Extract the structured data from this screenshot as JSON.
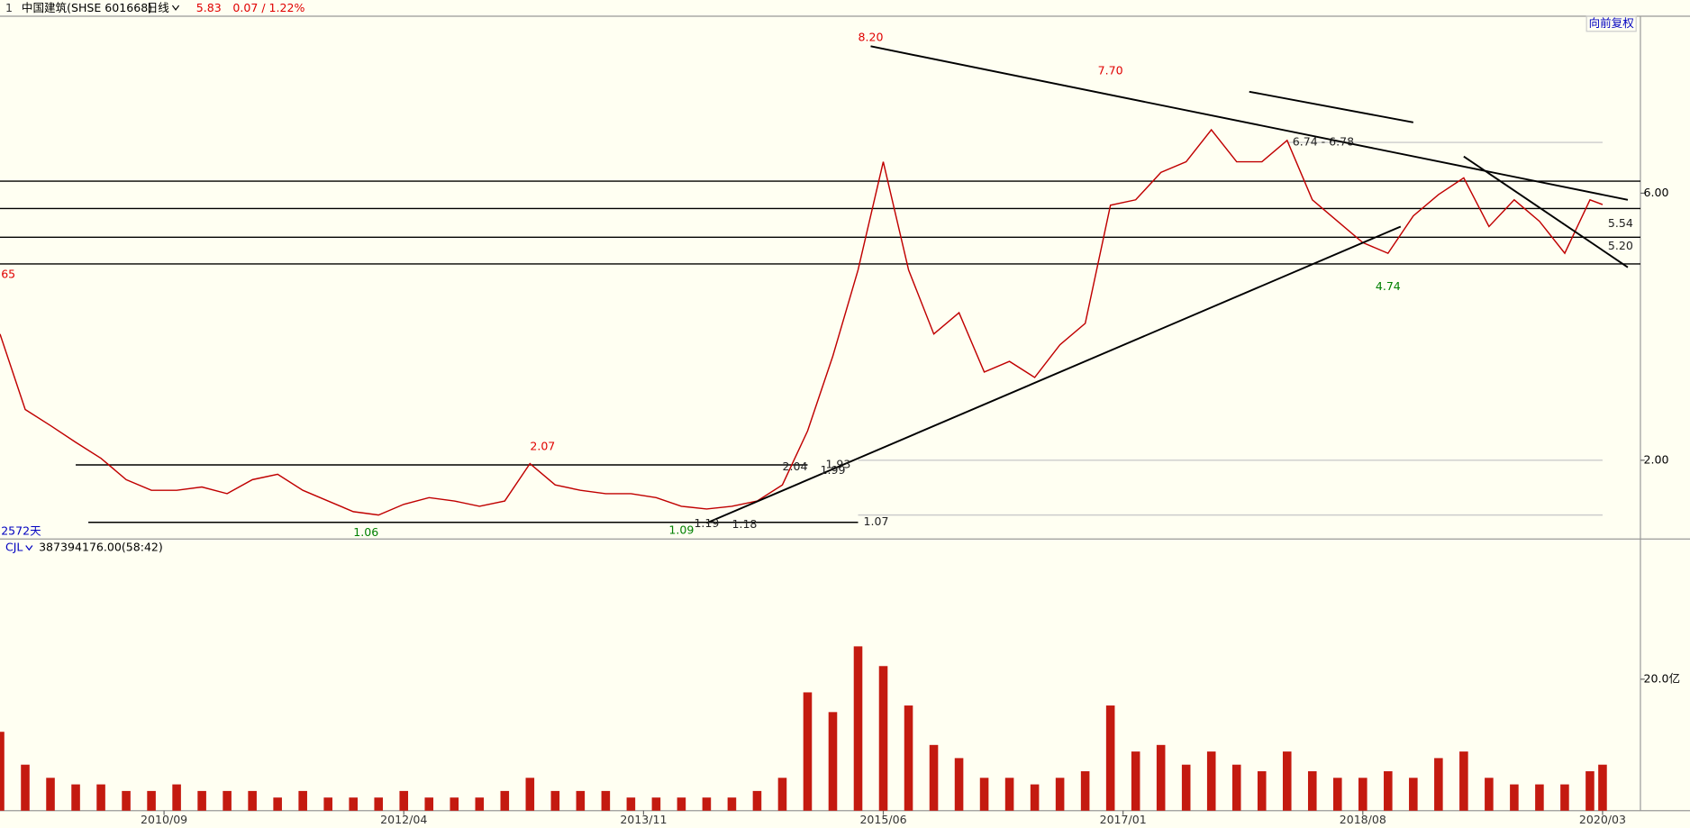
{
  "header": {
    "index": "1",
    "name": "中国建筑(SHSE 601668)",
    "period": "日线",
    "price": "5.83",
    "change": "0.07 / 1.22%",
    "adjust": "向前复权",
    "days": "2572天",
    "left_label": "65",
    "indicator": "CJL",
    "indicator_value": "387394176.00(58:42)"
  },
  "chart_data": [
    {
      "type": "line",
      "color": "#c00000",
      "xlim": [
        "2009/08",
        "2020/06"
      ],
      "ylim": [
        0.82,
        8.65
      ],
      "yticks": [
        {
          "value": 2,
          "label": "2.00"
        },
        {
          "value": 6,
          "label": "6.00"
        }
      ],
      "x": [
        "2009/08",
        "2009/10",
        "2009/12",
        "2010/02",
        "2010/04",
        "2010/06",
        "2010/08",
        "2010/10",
        "2010/12",
        "2011/02",
        "2011/04",
        "2011/06",
        "2011/08",
        "2011/10",
        "2011/12",
        "2012/02",
        "2012/04",
        "2012/06",
        "2012/08",
        "2012/10",
        "2012/12",
        "2013/02",
        "2013/04",
        "2013/06",
        "2013/08",
        "2013/10",
        "2013/12",
        "2014/02",
        "2014/04",
        "2014/06",
        "2014/08",
        "2014/10",
        "2014/12",
        "2015/02",
        "2015/04",
        "2015/06",
        "2015/08",
        "2015/10",
        "2015/12",
        "2016/02",
        "2016/04",
        "2016/06",
        "2016/08",
        "2016/10",
        "2016/12",
        "2017/02",
        "2017/04",
        "2017/06",
        "2017/08",
        "2017/10",
        "2017/12",
        "2018/02",
        "2018/04",
        "2018/06",
        "2018/08",
        "2018/10",
        "2018/12",
        "2019/02",
        "2019/04",
        "2019/06",
        "2019/08",
        "2019/10",
        "2019/12",
        "2020/02",
        "2020/03"
      ],
      "values": [
        3.89,
        2.76,
        2.52,
        2.27,
        2.03,
        1.71,
        1.55,
        1.55,
        1.6,
        1.5,
        1.71,
        1.79,
        1.55,
        1.39,
        1.23,
        1.18,
        1.34,
        1.44,
        1.39,
        1.31,
        1.39,
        1.95,
        1.63,
        1.55,
        1.5,
        1.5,
        1.44,
        1.31,
        1.27,
        1.31,
        1.39,
        1.63,
        2.44,
        3.56,
        4.85,
        6.47,
        4.85,
        3.89,
        4.21,
        3.32,
        3.48,
        3.24,
        3.73,
        4.05,
        5.82,
        5.9,
        6.31,
        6.47,
        6.95,
        6.47,
        6.47,
        6.79,
        5.9,
        5.58,
        5.26,
        5.1,
        5.66,
        5.98,
        6.23,
        5.5,
        5.9,
        5.58,
        5.1,
        5.9,
        5.83
      ],
      "hlines": [
        {
          "value": 6.18,
          "x": [
            "2009/08",
            "2020/06"
          ],
          "color": "#000000"
        },
        {
          "value": 5.77,
          "x": [
            "2009/08",
            "2020/06"
          ],
          "color": "#000000"
        },
        {
          "value": 5.34,
          "x": [
            "2009/08",
            "2020/06"
          ],
          "color": "#000000"
        },
        {
          "value": 4.94,
          "x": [
            "2009/08",
            "2020/06"
          ],
          "color": "#000000"
        },
        {
          "value": 1.93,
          "x": [
            "2010/02",
            "2014/12"
          ],
          "color": "#000000"
        },
        {
          "value": 1.07,
          "x": [
            "2010/03",
            "2015/04"
          ],
          "color": "#000000"
        },
        {
          "value": 6.76,
          "x": [
            "2018/02",
            "2020/03"
          ],
          "color": "#cccccc"
        },
        {
          "value": 2,
          "x": [
            "2015/04",
            "2020/03"
          ],
          "color": "#cccccc"
        },
        {
          "value": 1.18,
          "x": [
            "2015/04",
            "2020/03"
          ],
          "color": "#cccccc"
        }
      ],
      "trendlines": [
        {
          "x": [
            "2015/05",
            "2020/05"
          ],
          "y": [
            8.2,
            5.9
          ]
        },
        {
          "x": [
            "2017/11",
            "2018/12"
          ],
          "y": [
            7.52,
            7.06
          ]
        },
        {
          "x": [
            "2014/04",
            "2018/11"
          ],
          "y": [
            1.06,
            5.5
          ]
        },
        {
          "x": [
            "2019/04",
            "2020/05"
          ],
          "y": [
            6.55,
            4.89
          ]
        }
      ],
      "annotations": [
        {
          "label": "8.20",
          "value": 8.2,
          "x": "2015/05",
          "color": "#e00000",
          "pos": "above"
        },
        {
          "label": "7.70",
          "value": 7.7,
          "x": "2016/12",
          "color": "#e00000",
          "pos": "above"
        },
        {
          "label": "6.74 - 6.78",
          "value": 6.76,
          "x": "2018/02",
          "color": "#222222",
          "pos": "right"
        },
        {
          "label": "5.54",
          "value": 5.54,
          "x": "2020/03",
          "color": "#222222",
          "pos": "right"
        },
        {
          "label": "5.20",
          "value": 5.2,
          "x": "2020/03",
          "color": "#222222",
          "pos": "right"
        },
        {
          "label": "4.74",
          "value": 4.74,
          "x": "2018/10",
          "color": "#008000",
          "pos": "below"
        },
        {
          "label": "2.07",
          "value": 2.07,
          "x": "2013/03",
          "color": "#e00000",
          "pos": "above"
        },
        {
          "label": "2.04",
          "value": 2.04,
          "x": "2014/11",
          "color": "#222222",
          "pos": "below"
        },
        {
          "label": "1.93",
          "value": 1.93,
          "x": "2015/01",
          "color": "#222222",
          "pos": "right"
        },
        {
          "label": "1.99",
          "value": 1.99,
          "x": "2015/02",
          "color": "#222222",
          "pos": "below"
        },
        {
          "label": "1.06",
          "value": 1.06,
          "x": "2012/01",
          "color": "#008000",
          "pos": "below"
        },
        {
          "label": "1.09",
          "value": 1.09,
          "x": "2014/02",
          "color": "#008000",
          "pos": "below"
        },
        {
          "label": "1.19",
          "value": 1.19,
          "x": "2014/04",
          "color": "#222222",
          "pos": "below"
        },
        {
          "label": "1.18",
          "value": 1.18,
          "x": "2014/07",
          "color": "#222222",
          "pos": "below"
        },
        {
          "label": "1.07",
          "value": 1.07,
          "x": "2015/04",
          "color": "#222222",
          "pos": "right"
        }
      ]
    },
    {
      "type": "bar",
      "color": "#c41a10",
      "xlim": [
        "2009/08",
        "2020/06"
      ],
      "ylim": [
        0,
        38.7
      ],
      "yticks": [
        {
          "value": 20,
          "label": "20.0亿"
        }
      ],
      "xticks": [
        "2010/09",
        "2012/04",
        "2013/11",
        "2015/06",
        "2017/01",
        "2018/08",
        "2020/03"
      ],
      "x": [
        "2009/08",
        "2009/10",
        "2009/12",
        "2010/02",
        "2010/04",
        "2010/06",
        "2010/08",
        "2010/10",
        "2010/12",
        "2011/02",
        "2011/04",
        "2011/06",
        "2011/08",
        "2011/10",
        "2011/12",
        "2012/02",
        "2012/04",
        "2012/06",
        "2012/08",
        "2012/10",
        "2012/12",
        "2013/02",
        "2013/04",
        "2013/06",
        "2013/08",
        "2013/10",
        "2013/12",
        "2014/02",
        "2014/04",
        "2014/06",
        "2014/08",
        "2014/10",
        "2014/12",
        "2015/02",
        "2015/04",
        "2015/06",
        "2015/08",
        "2015/10",
        "2015/12",
        "2016/02",
        "2016/04",
        "2016/06",
        "2016/08",
        "2016/10",
        "2016/12",
        "2017/02",
        "2017/04",
        "2017/06",
        "2017/08",
        "2017/10",
        "2017/12",
        "2018/02",
        "2018/04",
        "2018/06",
        "2018/08",
        "2018/10",
        "2018/12",
        "2019/02",
        "2019/04",
        "2019/06",
        "2019/08",
        "2019/10",
        "2019/12",
        "2020/02",
        "2020/03"
      ],
      "values": [
        12,
        7,
        5,
        4,
        4,
        3,
        3,
        4,
        3,
        3,
        3,
        2,
        3,
        2,
        2,
        2,
        3,
        2,
        2,
        2,
        3,
        5,
        3,
        3,
        3,
        2,
        2,
        2,
        2,
        2,
        3,
        5,
        18,
        15,
        25,
        22,
        16,
        10,
        8,
        5,
        5,
        4,
        5,
        6,
        16,
        9,
        10,
        7,
        9,
        7,
        6,
        9,
        6,
        5,
        5,
        6,
        5,
        8,
        9,
        5,
        4,
        4,
        4,
        6,
        7
      ]
    }
  ]
}
